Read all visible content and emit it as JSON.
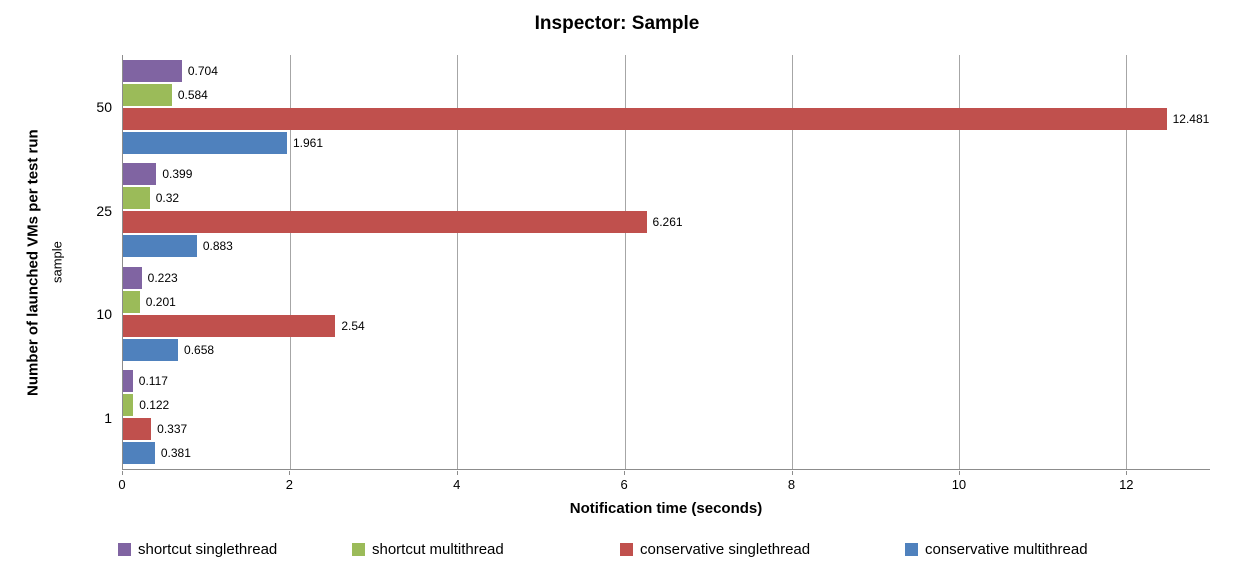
{
  "chart_data": {
    "type": "bar",
    "orientation": "horizontal",
    "title": "Inspector: Sample",
    "xlabel": "Notification time (seconds)",
    "ylabel": "Number of launched VMs per test run",
    "ylabel_inner": "sample",
    "categories": [
      "50",
      "25",
      "10",
      "1"
    ],
    "series": [
      {
        "name": "shortcut singlethread",
        "color": "#8064A2",
        "values": [
          0.704,
          0.399,
          0.223,
          0.117
        ]
      },
      {
        "name": "shortcut multithread",
        "color": "#9BBB59",
        "values": [
          0.584,
          0.32,
          0.201,
          0.122
        ]
      },
      {
        "name": "conservative singlethread",
        "color": "#C0504D",
        "values": [
          12.481,
          6.261,
          2.54,
          0.337
        ]
      },
      {
        "name": "conservative multithread",
        "color": "#4F81BD",
        "values": [
          1.961,
          0.883,
          0.658,
          0.381
        ]
      }
    ],
    "xticks": [
      0,
      2,
      4,
      6,
      8,
      10,
      12
    ],
    "xlim": [
      0,
      13
    ],
    "grid": true,
    "legend_position": "bottom",
    "colors": {
      "axis": "#8c8c8c",
      "gridline": "#a6a6a6",
      "text": "#000000"
    }
  }
}
